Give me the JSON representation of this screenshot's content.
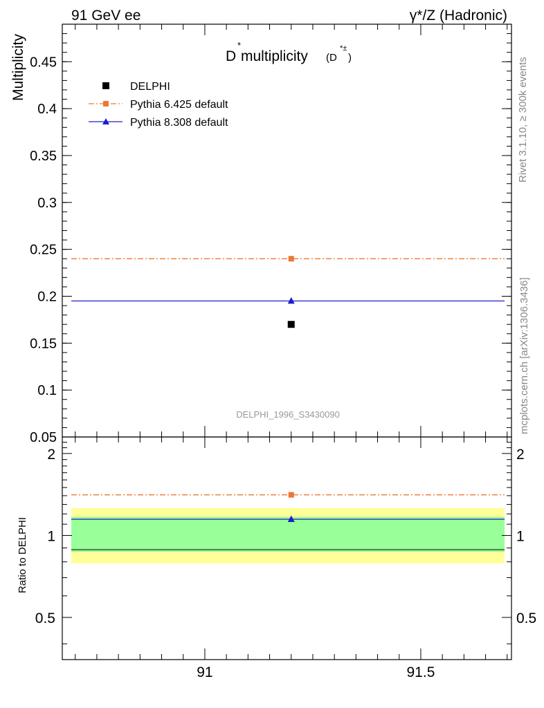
{
  "header": {
    "left": "91 GeV ee",
    "right": "γ*/Z (Hadronic)"
  },
  "side_labels": {
    "rivet": "Rivet 3.1.10, ≥ 300k events",
    "mcplots": "mcplots.cern.ch [arXiv:1306.3436]"
  },
  "chart_data": [
    {
      "type": "scatter",
      "title": {
        "main": "D",
        "main_sup": "*",
        "main_rest": " multiplicity",
        "sub": "(D",
        "sub_sup": "*±",
        "sub_close": ")"
      },
      "ylabel": "Multiplicity",
      "analysis_label": "DELPHI_1996_S3430090",
      "xlim": [
        90.67,
        91.71
      ],
      "ylim": [
        0.05,
        0.49
      ],
      "x_ticks": [
        91,
        91.5
      ],
      "x_tick_labels": [
        "91",
        "91.5"
      ],
      "y_ticks": [
        0.05,
        0.1,
        0.15,
        0.2,
        0.25,
        0.3,
        0.35,
        0.4,
        0.45
      ],
      "y_tick_labels": [
        "0.05",
        "0.1",
        "0.15",
        "0.2",
        "0.25",
        "0.3",
        "0.35",
        "0.4",
        "0.45"
      ],
      "legend_position": "top-left",
      "series": [
        {
          "name": "DELPHI",
          "marker": "square",
          "color": "#000000",
          "x": [
            91.2
          ],
          "y": [
            0.17
          ]
        },
        {
          "name": "Pythia 6.425 default",
          "marker": "square",
          "line": "dash-dot",
          "color": "#ee7733",
          "x": [
            91.2
          ],
          "y": [
            0.24
          ]
        },
        {
          "name": "Pythia 8.308 default",
          "marker": "triangle",
          "line": "solid",
          "color": "#1c1ccc",
          "x": [
            91.2
          ],
          "y": [
            0.195
          ]
        }
      ]
    },
    {
      "type": "scatter",
      "ylabel": "Ratio to DELPHI",
      "xlim": [
        90.67,
        91.71
      ],
      "ylim": [
        0.35,
        2.3
      ],
      "y_ticks": [
        0.5,
        1,
        2
      ],
      "y_tick_labels": [
        "0.5",
        "1",
        "2"
      ],
      "x_ticks": [
        91,
        91.5
      ],
      "x_tick_labels": [
        "91",
        "91.5"
      ],
      "bands": [
        {
          "kind": "total uncertainty",
          "color": "#ffff99",
          "low": 0.79,
          "high": 1.26
        },
        {
          "kind": "statistical uncertainty",
          "color": "#99ff99",
          "low": 0.87,
          "high": 1.17
        }
      ],
      "series": [
        {
          "name": "Pythia 6.425 default",
          "marker": "square",
          "line": "dash-dot",
          "color": "#ee7733",
          "x": [
            91.2
          ],
          "y": [
            1.41
          ]
        },
        {
          "name": "Pythia 8.308 default",
          "marker": "triangle",
          "line": "solid",
          "color": "#1c1ccc",
          "x": [
            91.2
          ],
          "y": [
            1.147
          ]
        }
      ]
    }
  ]
}
